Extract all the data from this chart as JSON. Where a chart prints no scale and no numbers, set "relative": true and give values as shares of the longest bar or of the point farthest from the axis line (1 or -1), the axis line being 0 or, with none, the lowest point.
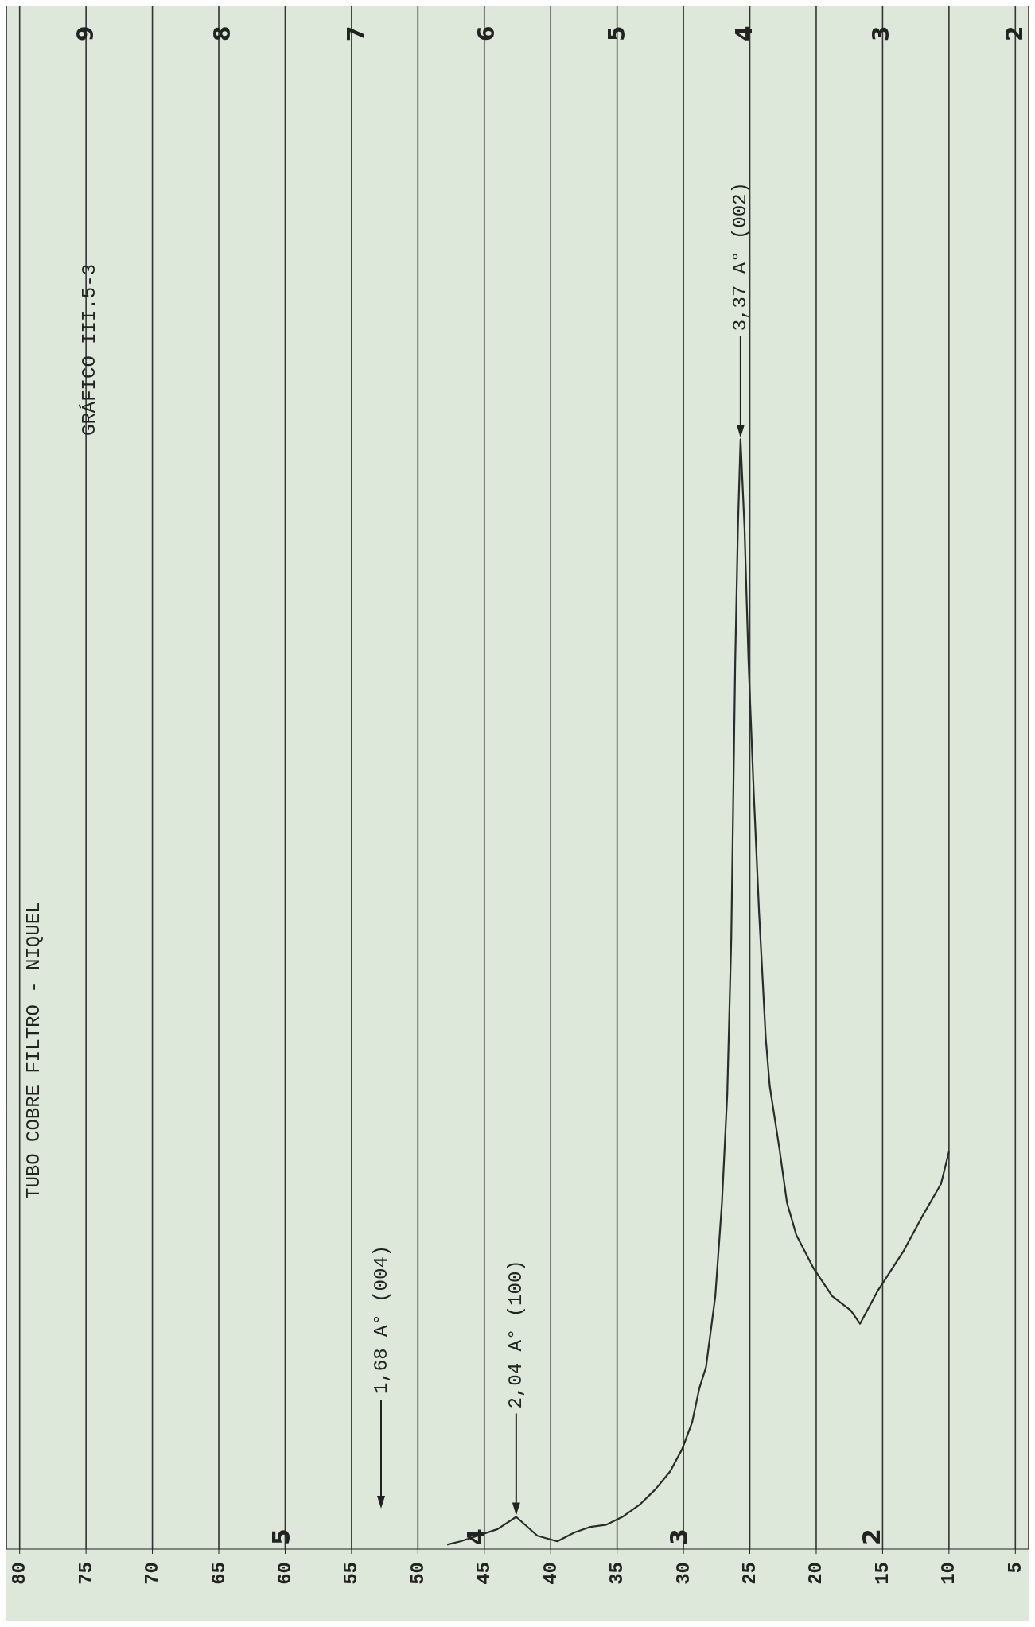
{
  "chart_data": {
    "type": "line",
    "title": "TUBO COBRE FILTRO - NIQUEL",
    "relative": true,
    "x": [
      47.8,
      46.8,
      45.5,
      44.0,
      42.6,
      41.0,
      39.5,
      38.2,
      37.0,
      35.8,
      34.6,
      33.3,
      32.1,
      31.0,
      30.1,
      29.35,
      28.8,
      28.3,
      27.6,
      27.1,
      26.7,
      26.4,
      26.1,
      25.9,
      25.7,
      25.4,
      25.1,
      24.7,
      24.3,
      23.8,
      23.5,
      22.8,
      22.2,
      21.5,
      20.2,
      18.8,
      17.4,
      16.7,
      15.4,
      13.4,
      12.0,
      10.6,
      10.0
    ],
    "series": [
      {
        "color": "#2b2b2b",
        "values": [
          0.004,
          0.007,
          0.012,
          0.018,
          0.029,
          0.012,
          0.007,
          0.015,
          0.02,
          0.022,
          0.029,
          0.04,
          0.054,
          0.07,
          0.09,
          0.114,
          0.145,
          0.164,
          0.228,
          0.312,
          0.41,
          0.55,
          0.8,
          0.92,
          1.0,
          0.92,
          0.8,
          0.68,
          0.573,
          0.46,
          0.417,
          0.363,
          0.312,
          0.283,
          0.253,
          0.228,
          0.215,
          0.203,
          0.232,
          0.269,
          0.3,
          0.329,
          0.358
        ]
      }
    ],
    "xlim": [
      81,
      4
    ],
    "xticks": [
      80,
      75,
      70,
      65,
      60,
      55,
      50,
      45,
      40,
      35,
      30,
      25,
      20,
      15,
      10,
      5
    ],
    "grid": "x",
    "line_style": "solid",
    "marker": "none",
    "annotations": [
      "GRÁFICO III.5-3",
      "1,68 A° (004)",
      {
        "text": "2,04 A° (100)",
        "x": 42.6,
        "y": 0.029
      },
      {
        "text": "3,37 A° (002)",
        "x": 25.7,
        "y": 1.0
      },
      "5",
      "4",
      "3",
      "2",
      "9",
      "8",
      "7",
      "6",
      "5",
      "4",
      "3",
      "2"
    ]
  }
}
